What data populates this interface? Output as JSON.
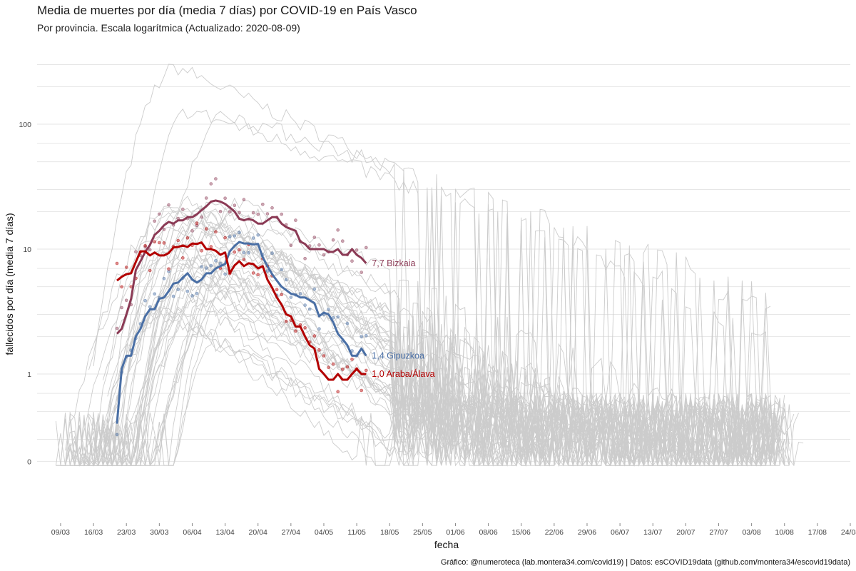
{
  "title": "Media de muertes por día (media 7 días) por COVID-19 en País Vasco",
  "subtitle": "Por provincia. Escala logarítmica  (Actualizado: 2020-08-09)",
  "caption": "Gráfico: @numeroteca (lab.montera34.com/covid19) | Datos: esCOVID19data (github.com/montera34/escovid19data)",
  "colors": {
    "background_lines": "#cccccc",
    "grid": "#e6e6e6",
    "bizkaia": "#8b3a55",
    "gipuzkoa": "#4a6fa5",
    "araba": "#b30000"
  },
  "chart_data": {
    "type": "line",
    "title": "Media de muertes por día (media 7 días) por COVID-19 en País Vasco",
    "subtitle": "Por provincia. Escala logarítmica  (Actualizado: 2020-08-09)",
    "xlabel": "fecha",
    "ylabel": "fallecidos por día (media 7 días)",
    "y_scale": "log",
    "ylim": [
      0.18,
      320
    ],
    "xlim": [
      "2020-03-04",
      "2020-08-24"
    ],
    "grid": true,
    "legend": "none (labels at line ends)",
    "x_ticks": [
      "09/03",
      "16/03",
      "23/03",
      "30/03",
      "06/04",
      "13/04",
      "20/04",
      "27/04",
      "04/05",
      "11/05",
      "18/05",
      "25/05",
      "01/06",
      "08/06",
      "15/06",
      "22/06",
      "29/06",
      "06/07",
      "13/07",
      "20/07",
      "27/07",
      "03/08",
      "10/08",
      "17/08",
      "24/08"
    ],
    "y_ticks": [
      {
        "value": 0.2,
        "label": "0"
      },
      {
        "value": 1,
        "label": "1"
      },
      {
        "value": 10,
        "label": "10"
      },
      {
        "value": 100,
        "label": "100"
      }
    ],
    "background_series_note": "Otras provincias de España en gris (sin etiqueta)",
    "series": [
      {
        "name": "Bizkaia",
        "end_label": "7,7 Bizkaia",
        "color": "#8b3a55",
        "x": [
          "2020-03-21",
          "2020-03-22",
          "2020-03-23",
          "2020-03-24",
          "2020-03-25",
          "2020-03-26",
          "2020-03-27",
          "2020-03-28",
          "2020-03-29",
          "2020-03-30",
          "2020-03-31",
          "2020-04-01",
          "2020-04-02",
          "2020-04-03",
          "2020-04-04",
          "2020-04-05",
          "2020-04-06",
          "2020-04-07",
          "2020-04-08",
          "2020-04-09",
          "2020-04-10",
          "2020-04-11",
          "2020-04-12",
          "2020-04-13",
          "2020-04-14",
          "2020-04-15",
          "2020-04-16",
          "2020-04-17",
          "2020-04-18",
          "2020-04-19",
          "2020-04-20",
          "2020-04-21",
          "2020-04-22",
          "2020-04-23",
          "2020-04-24",
          "2020-04-25",
          "2020-04-26",
          "2020-04-27",
          "2020-04-28",
          "2020-04-29",
          "2020-04-30",
          "2020-05-01",
          "2020-05-02",
          "2020-05-03",
          "2020-05-04",
          "2020-05-05",
          "2020-05-06",
          "2020-05-07",
          "2020-05-08",
          "2020-05-09",
          "2020-05-10",
          "2020-05-11",
          "2020-05-12",
          "2020-05-13"
        ],
        "y": [
          2.1,
          2.3,
          3.0,
          4.0,
          6.8,
          8.0,
          9.5,
          10.8,
          13.0,
          14.0,
          15.5,
          16.5,
          16.0,
          17.0,
          17.0,
          18.0,
          18.0,
          19.0,
          20.5,
          22.0,
          24.0,
          24.5,
          24.0,
          23.0,
          21.5,
          20.0,
          17.5,
          17.0,
          17.5,
          17.0,
          16.0,
          16.0,
          17.0,
          18.0,
          18.0,
          16.0,
          15.0,
          14.5,
          14.0,
          11.5,
          11.0,
          10.0,
          10.0,
          10.0,
          10.0,
          9.5,
          9.5,
          10.0,
          9.0,
          9.0,
          10.0,
          9.0,
          8.5,
          7.7
        ]
      },
      {
        "name": "Gipuzkoa",
        "end_label": "1,4 Gipuzkoa",
        "color": "#4a6fa5",
        "x": [
          "2020-03-21",
          "2020-03-22",
          "2020-03-23",
          "2020-03-24",
          "2020-03-25",
          "2020-03-26",
          "2020-03-27",
          "2020-03-28",
          "2020-03-29",
          "2020-03-30",
          "2020-03-31",
          "2020-04-01",
          "2020-04-02",
          "2020-04-03",
          "2020-04-04",
          "2020-04-05",
          "2020-04-06",
          "2020-04-07",
          "2020-04-08",
          "2020-04-09",
          "2020-04-10",
          "2020-04-11",
          "2020-04-12",
          "2020-04-13",
          "2020-04-14",
          "2020-04-15",
          "2020-04-16",
          "2020-04-17",
          "2020-04-18",
          "2020-04-19",
          "2020-04-20",
          "2020-04-21",
          "2020-04-22",
          "2020-04-23",
          "2020-04-24",
          "2020-04-25",
          "2020-04-26",
          "2020-04-27",
          "2020-04-28",
          "2020-04-29",
          "2020-04-30",
          "2020-05-01",
          "2020-05-02",
          "2020-05-03",
          "2020-05-04",
          "2020-05-05",
          "2020-05-06",
          "2020-05-07",
          "2020-05-08",
          "2020-05-09",
          "2020-05-10",
          "2020-05-11",
          "2020-05-12",
          "2020-05-13"
        ],
        "y": [
          0.4,
          1.1,
          1.4,
          1.4,
          2.0,
          2.3,
          2.9,
          3.3,
          3.3,
          4.0,
          4.1,
          4.6,
          5.3,
          5.4,
          5.9,
          6.4,
          5.7,
          5.4,
          5.7,
          6.4,
          6.4,
          7.0,
          7.3,
          7.6,
          9.6,
          10.6,
          11.4,
          11.1,
          11.1,
          10.9,
          11.0,
          8.6,
          7.3,
          6.3,
          5.6,
          5.0,
          4.7,
          4.4,
          4.3,
          4.1,
          4.1,
          3.9,
          3.7,
          2.9,
          3.1,
          3.0,
          2.6,
          2.1,
          1.9,
          1.7,
          1.4,
          1.4,
          1.6,
          1.4
        ]
      },
      {
        "name": "Araba/Álava",
        "end_label": "1,0 Araba/Álava",
        "color": "#b30000",
        "x": [
          "2020-03-21",
          "2020-03-22",
          "2020-03-23",
          "2020-03-24",
          "2020-03-25",
          "2020-03-26",
          "2020-03-27",
          "2020-03-28",
          "2020-03-29",
          "2020-03-30",
          "2020-03-31",
          "2020-04-01",
          "2020-04-02",
          "2020-04-03",
          "2020-04-04",
          "2020-04-05",
          "2020-04-06",
          "2020-04-07",
          "2020-04-08",
          "2020-04-09",
          "2020-04-10",
          "2020-04-11",
          "2020-04-12",
          "2020-04-13",
          "2020-04-14",
          "2020-04-15",
          "2020-04-16",
          "2020-04-17",
          "2020-04-18",
          "2020-04-19",
          "2020-04-20",
          "2020-04-21",
          "2020-04-22",
          "2020-04-23",
          "2020-04-24",
          "2020-04-25",
          "2020-04-26",
          "2020-04-27",
          "2020-04-28",
          "2020-04-29",
          "2020-04-30",
          "2020-05-01",
          "2020-05-02",
          "2020-05-03",
          "2020-05-04",
          "2020-05-05",
          "2020-05-06",
          "2020-05-07",
          "2020-05-08",
          "2020-05-09",
          "2020-05-10",
          "2020-05-11",
          "2020-05-12",
          "2020-05-13"
        ],
        "y": [
          5.6,
          6.0,
          6.3,
          6.4,
          7.9,
          9.6,
          9.6,
          8.9,
          9.4,
          8.9,
          8.9,
          9.3,
          10.3,
          10.4,
          10.7,
          10.4,
          11.1,
          11.0,
          11.3,
          10.0,
          10.0,
          9.7,
          9.0,
          9.4,
          6.4,
          7.4,
          8.0,
          7.3,
          7.7,
          7.6,
          7.0,
          7.3,
          5.7,
          4.9,
          4.1,
          3.6,
          3.0,
          2.9,
          2.4,
          2.4,
          2.0,
          1.7,
          1.6,
          1.1,
          1.0,
          0.9,
          0.9,
          1.0,
          0.9,
          0.9,
          1.0,
          1.1,
          1.0,
          1.0
        ]
      }
    ]
  }
}
